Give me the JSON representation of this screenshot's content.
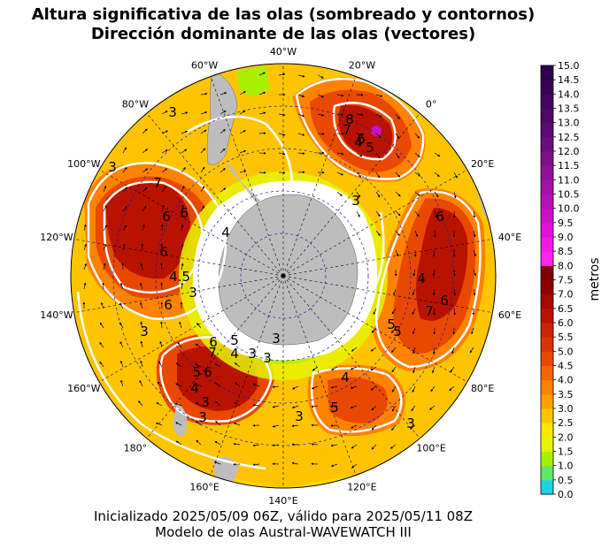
{
  "title": {
    "line1": "Altura significativa de las olas (sombreado y contornos)",
    "line2": "Dirección dominante de las olas (vectores)"
  },
  "caption": {
    "line1": "Inicializado 2025/05/09 06Z, válido para 2025/05/11 08Z",
    "line2": "Modelo de olas Austral-WAVEWATCH III"
  },
  "map": {
    "projection": "south-polar stereographic",
    "longitude_labels": [
      "40°W",
      "20°W",
      "0°",
      "20°E",
      "40°E",
      "60°E",
      "80°E",
      "100°E",
      "120°E",
      "140°E",
      "160°E",
      "180°",
      "160°W",
      "140°W",
      "120°W",
      "100°W",
      "80°W",
      "60°W"
    ],
    "contour_labels": [
      "3",
      "3",
      "7",
      "6",
      "6",
      "6",
      "4.5",
      "3",
      "6",
      "4",
      "3",
      "8",
      "7",
      "6",
      "4",
      "5",
      "3",
      "6",
      "4",
      "7",
      "6",
      "5",
      "5",
      "3",
      "6",
      "7",
      "6",
      "5",
      "4",
      "5",
      "4",
      "3",
      "3",
      "4",
      "5",
      "3",
      "3",
      "3",
      "3"
    ],
    "land_color": "#bdbdbd",
    "ice_color": "#ffffff"
  },
  "colorbar": {
    "label": "metros",
    "ticks": [
      "0.0",
      "0.5",
      "1.0",
      "1.5",
      "2.0",
      "2.5",
      "3.0",
      "3.5",
      "4.0",
      "4.5",
      "5.0",
      "5.5",
      "6.0",
      "6.5",
      "7.0",
      "7.5",
      "8.0",
      "8.5",
      "9.0",
      "9.5",
      "10.0",
      "10.5",
      "11.0",
      "11.5",
      "12.0",
      "12.5",
      "13.0",
      "13.5",
      "14.0",
      "14.5",
      "15.0"
    ],
    "colors": [
      "#1fd3e0",
      "#5fe86a",
      "#a8f000",
      "#e6f500",
      "#ffe600",
      "#ffc400",
      "#ffa000",
      "#ff8200",
      "#f56400",
      "#e84800",
      "#d83400",
      "#c82400",
      "#b81200",
      "#a40800",
      "#900000",
      "#7c0000",
      "#ff22ee",
      "#f418e6",
      "#e010d8",
      "#cc10c8",
      "#b810b8",
      "#a410aa",
      "#92109c",
      "#7e108e",
      "#6c0c80",
      "#5c0a74",
      "#4e0868",
      "#44065e",
      "#3a0456",
      "#30024e"
    ]
  }
}
